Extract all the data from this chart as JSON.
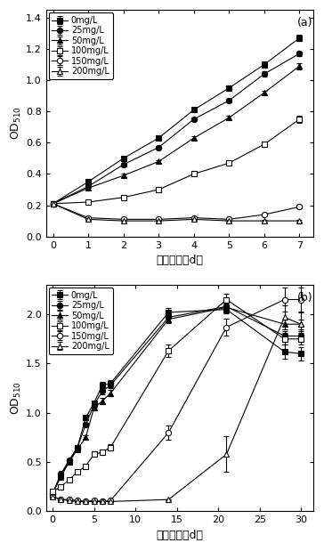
{
  "panel_a": {
    "x": [
      0,
      1,
      2,
      3,
      4,
      5,
      6,
      7
    ],
    "series": [
      {
        "label": "0mg/L",
        "y": [
          0.21,
          0.35,
          0.5,
          0.63,
          0.81,
          0.95,
          1.1,
          1.27
        ],
        "yerr": [
          0.005,
          0.01,
          0.01,
          0.01,
          0.015,
          0.015,
          0.02,
          0.02
        ],
        "marker": "s",
        "fillstyle": "full"
      },
      {
        "label": "25mg/L",
        "y": [
          0.21,
          0.32,
          0.46,
          0.57,
          0.75,
          0.87,
          1.04,
          1.17
        ],
        "yerr": [
          0.005,
          0.01,
          0.01,
          0.01,
          0.01,
          0.01,
          0.015,
          0.015
        ],
        "marker": "o",
        "fillstyle": "full"
      },
      {
        "label": "50mg/L",
        "y": [
          0.21,
          0.31,
          0.39,
          0.48,
          0.63,
          0.76,
          0.92,
          1.09
        ],
        "yerr": [
          0.005,
          0.01,
          0.01,
          0.01,
          0.01,
          0.01,
          0.015,
          0.02
        ],
        "marker": "^",
        "fillstyle": "full"
      },
      {
        "label": "100mg/L",
        "y": [
          0.21,
          0.22,
          0.25,
          0.3,
          0.4,
          0.47,
          0.59,
          0.75
        ],
        "yerr": [
          0.005,
          0.005,
          0.01,
          0.01,
          0.01,
          0.01,
          0.015,
          0.02
        ],
        "marker": "s",
        "fillstyle": "none"
      },
      {
        "label": "150mg/L",
        "y": [
          0.21,
          0.12,
          0.11,
          0.11,
          0.12,
          0.11,
          0.14,
          0.19
        ],
        "yerr": [
          0.005,
          0.005,
          0.005,
          0.005,
          0.005,
          0.005,
          0.008,
          0.01
        ],
        "marker": "o",
        "fillstyle": "none"
      },
      {
        "label": "200mg/L",
        "y": [
          0.21,
          0.11,
          0.1,
          0.1,
          0.11,
          0.1,
          0.1,
          0.1
        ],
        "yerr": [
          0.005,
          0.005,
          0.005,
          0.005,
          0.005,
          0.005,
          0.005,
          0.005
        ],
        "marker": "^",
        "fillstyle": "none"
      }
    ],
    "xlabel": "培养时间（d）",
    "ylim": [
      0.0,
      1.45
    ],
    "yticks": [
      0.0,
      0.2,
      0.4,
      0.6,
      0.8,
      1.0,
      1.2,
      1.4
    ],
    "xticks": [
      0,
      1,
      2,
      3,
      4,
      5,
      6,
      7
    ],
    "xlim": [
      -0.2,
      7.4
    ],
    "label": "(a)"
  },
  "panel_b": {
    "x": [
      0,
      1,
      2,
      3,
      4,
      5,
      6,
      7,
      14,
      21,
      28,
      30
    ],
    "series": [
      {
        "label": "0mg/L",
        "y": [
          0.18,
          0.37,
          0.5,
          0.65,
          0.95,
          1.1,
          1.28,
          1.3,
          2.02,
          2.05,
          1.62,
          1.6
        ],
        "yerr": [
          0.005,
          0.01,
          0.015,
          0.02,
          0.02,
          0.025,
          0.03,
          0.03,
          0.04,
          0.04,
          0.07,
          0.07
        ],
        "marker": "s",
        "fillstyle": "full"
      },
      {
        "label": "25mg/L",
        "y": [
          0.18,
          0.38,
          0.52,
          0.65,
          0.88,
          1.08,
          1.22,
          1.28,
          1.97,
          2.08,
          1.78,
          1.78
        ],
        "yerr": [
          0.005,
          0.01,
          0.015,
          0.02,
          0.02,
          0.025,
          0.03,
          0.03,
          0.04,
          0.04,
          0.05,
          0.05
        ],
        "marker": "o",
        "fillstyle": "full"
      },
      {
        "label": "50mg/L",
        "y": [
          0.18,
          0.35,
          0.5,
          0.63,
          0.75,
          1.05,
          1.12,
          1.2,
          1.95,
          2.07,
          1.9,
          1.9
        ],
        "yerr": [
          0.005,
          0.01,
          0.015,
          0.02,
          0.02,
          0.025,
          0.03,
          0.03,
          0.04,
          0.04,
          0.05,
          0.05
        ],
        "marker": "^",
        "fillstyle": "full"
      },
      {
        "label": "100mg/L",
        "y": [
          0.2,
          0.25,
          0.32,
          0.4,
          0.46,
          0.58,
          0.6,
          0.65,
          1.63,
          2.15,
          1.75,
          1.75
        ],
        "yerr": [
          0.005,
          0.01,
          0.01,
          0.015,
          0.02,
          0.02,
          0.025,
          0.03,
          0.06,
          0.06,
          0.06,
          0.06
        ],
        "marker": "s",
        "fillstyle": "none"
      },
      {
        "label": "150mg/L",
        "y": [
          0.15,
          0.12,
          0.12,
          0.11,
          0.1,
          0.11,
          0.1,
          0.11,
          0.8,
          1.87,
          2.15,
          2.15
        ],
        "yerr": [
          0.005,
          0.005,
          0.005,
          0.005,
          0.005,
          0.005,
          0.005,
          0.005,
          0.07,
          0.09,
          0.12,
          0.12
        ],
        "marker": "o",
        "fillstyle": "none"
      },
      {
        "label": "200mg/L",
        "y": [
          0.15,
          0.12,
          0.11,
          0.1,
          0.1,
          0.1,
          0.1,
          0.1,
          0.12,
          0.58,
          1.97,
          1.9
        ],
        "yerr": [
          0.005,
          0.005,
          0.005,
          0.005,
          0.005,
          0.005,
          0.005,
          0.005,
          0.005,
          0.18,
          0.12,
          0.12
        ],
        "marker": "^",
        "fillstyle": "none"
      }
    ],
    "xlabel": "培养时间（d）",
    "ylim": [
      0.0,
      2.3
    ],
    "yticks": [
      0.0,
      0.5,
      1.0,
      1.5,
      2.0
    ],
    "xticks": [
      0,
      5,
      10,
      15,
      20,
      25,
      30
    ],
    "xlim": [
      -0.8,
      31.5
    ],
    "label": "(b)"
  }
}
